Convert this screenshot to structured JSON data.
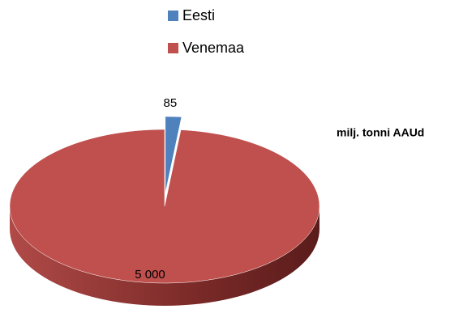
{
  "chart_data": {
    "type": "pie",
    "title": "milj. tonni AAUd",
    "categories": [
      "Eesti",
      "Venemaa"
    ],
    "values": [
      85,
      5000
    ],
    "value_labels": [
      "85",
      "5 000"
    ],
    "colors": [
      "#4f81bd",
      "#c0504d"
    ],
    "legend": "top",
    "exploded": [
      "Eesti"
    ]
  }
}
